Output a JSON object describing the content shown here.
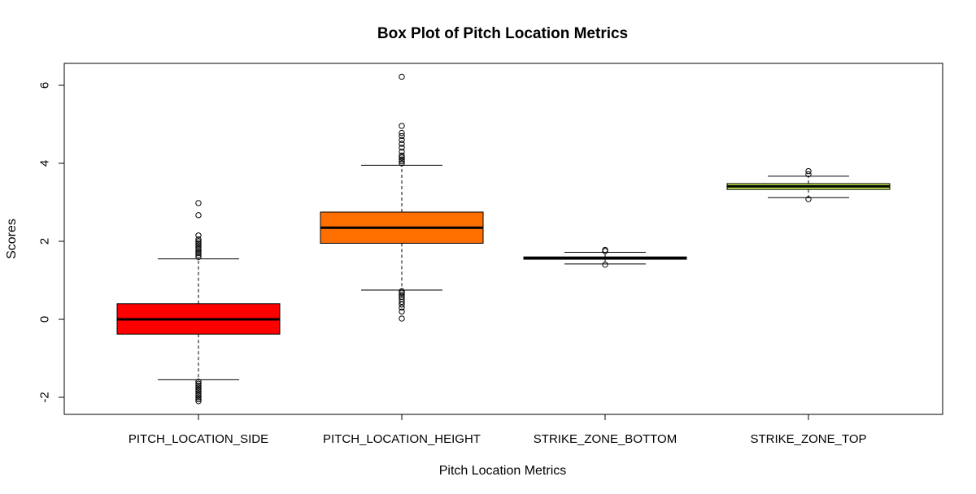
{
  "chart_data": {
    "type": "box",
    "title": "Box Plot of Pitch Location Metrics",
    "xlabel": "Pitch Location Metrics",
    "ylabel": "Scores",
    "ylim": [
      -2.2,
      6.5
    ],
    "yticks": [
      -2,
      0,
      2,
      4,
      6
    ],
    "categories": [
      "PITCH_LOCATION_SIDE",
      "PITCH_LOCATION_HEIGHT",
      "STRIKE_ZONE_BOTTOM",
      "STRIKE_ZONE_TOP"
    ],
    "boxes": [
      {
        "category": "PITCH_LOCATION_SIDE",
        "color": "#ff0000",
        "lower_whisker": -1.55,
        "q1": -0.38,
        "median": 0.0,
        "q3": 0.4,
        "upper_whisker": 1.55,
        "outliers": [
          -2.1,
          -2.05,
          -2.0,
          -1.95,
          -1.9,
          -1.85,
          -1.8,
          -1.75,
          -1.7,
          -1.65,
          -1.6,
          1.6,
          1.65,
          1.7,
          1.75,
          1.8,
          1.85,
          1.9,
          1.95,
          2.0,
          2.05,
          2.15,
          2.67,
          2.98
        ]
      },
      {
        "category": "PITCH_LOCATION_HEIGHT",
        "color": "#ff6f00",
        "lower_whisker": 0.75,
        "q1": 1.95,
        "median": 2.35,
        "q3": 2.75,
        "upper_whisker": 3.95,
        "outliers": [
          0.02,
          0.2,
          0.3,
          0.38,
          0.45,
          0.52,
          0.58,
          0.63,
          0.68,
          0.72,
          4.0,
          4.05,
          4.1,
          4.15,
          4.2,
          4.3,
          4.4,
          4.5,
          4.6,
          4.7,
          4.78,
          4.96,
          6.22
        ]
      },
      {
        "category": "STRIKE_ZONE_BOTTOM",
        "color": "#000000",
        "lower_whisker": 1.42,
        "q1": 1.54,
        "median": 1.57,
        "q3": 1.6,
        "upper_whisker": 1.72,
        "outliers": [
          1.4,
          1.75,
          1.78
        ]
      },
      {
        "category": "STRIKE_ZONE_TOP",
        "color": "#c5f04e",
        "lower_whisker": 3.12,
        "q1": 3.33,
        "median": 3.41,
        "q3": 3.48,
        "upper_whisker": 3.67,
        "outliers": [
          3.08,
          3.72,
          3.8
        ]
      }
    ],
    "grid": false,
    "legend": "none"
  }
}
